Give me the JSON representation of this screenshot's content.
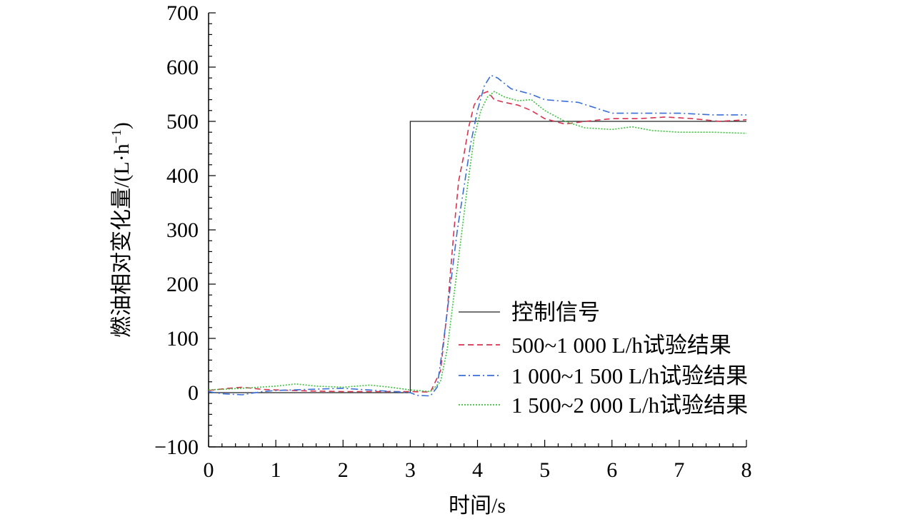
{
  "chart_data": {
    "type": "line",
    "xlabel": "时间/s",
    "ylabel_main": "燃油相对变化量/(L·h",
    "ylabel_sup": "−1",
    "ylabel_close": ")",
    "xlim": [
      0,
      8
    ],
    "ylim": [
      -100,
      700
    ],
    "x_ticks": [
      "0",
      "1",
      "2",
      "3",
      "4",
      "5",
      "6",
      "7",
      "8"
    ],
    "y_ticks": [
      "−100",
      "0",
      "100",
      "200",
      "300",
      "400",
      "500",
      "600",
      "700"
    ],
    "grid": false,
    "legend_position": "bottom-right",
    "series": [
      {
        "name": "控制信号",
        "color": "#222222",
        "style": "solid",
        "points": [
          [
            0,
            0
          ],
          [
            3.0,
            0
          ],
          [
            3.0,
            500
          ],
          [
            8.0,
            500
          ]
        ]
      },
      {
        "name": "500~1 000 L/h试验结果",
        "color": "#d6334f",
        "style": "dashed",
        "points": [
          [
            0,
            4
          ],
          [
            0.3,
            8
          ],
          [
            0.5,
            10
          ],
          [
            0.8,
            6
          ],
          [
            1.0,
            5
          ],
          [
            1.5,
            3
          ],
          [
            2.0,
            2
          ],
          [
            2.5,
            2
          ],
          [
            3.0,
            2
          ],
          [
            3.3,
            1
          ],
          [
            3.45,
            40
          ],
          [
            3.55,
            150
          ],
          [
            3.65,
            300
          ],
          [
            3.72,
            390
          ],
          [
            3.8,
            440
          ],
          [
            3.87,
            490
          ],
          [
            3.95,
            530
          ],
          [
            4.05,
            550
          ],
          [
            4.15,
            555
          ],
          [
            4.25,
            540
          ],
          [
            4.4,
            535
          ],
          [
            4.6,
            530
          ],
          [
            4.8,
            520
          ],
          [
            5.0,
            505
          ],
          [
            5.3,
            495
          ],
          [
            5.6,
            500
          ],
          [
            6.0,
            505
          ],
          [
            6.4,
            505
          ],
          [
            6.8,
            508
          ],
          [
            7.2,
            505
          ],
          [
            7.6,
            500
          ],
          [
            8.0,
            503
          ]
        ]
      },
      {
        "name": "1 000~1 500 L/h试验结果",
        "color": "#3a6fd8",
        "style": "dashdot",
        "points": [
          [
            0,
            2
          ],
          [
            0.2,
            -2
          ],
          [
            0.5,
            -4
          ],
          [
            0.8,
            2
          ],
          [
            1.0,
            4
          ],
          [
            1.5,
            6
          ],
          [
            2.0,
            8
          ],
          [
            2.5,
            4
          ],
          [
            3.0,
            0
          ],
          [
            3.1,
            -5
          ],
          [
            3.3,
            -6
          ],
          [
            3.4,
            10
          ],
          [
            3.5,
            100
          ],
          [
            3.6,
            200
          ],
          [
            3.7,
            300
          ],
          [
            3.8,
            380
          ],
          [
            3.9,
            460
          ],
          [
            4.0,
            520
          ],
          [
            4.1,
            565
          ],
          [
            4.2,
            585
          ],
          [
            4.3,
            580
          ],
          [
            4.5,
            560
          ],
          [
            4.8,
            550
          ],
          [
            5.0,
            540
          ],
          [
            5.5,
            535
          ],
          [
            6.0,
            515
          ],
          [
            6.5,
            515
          ],
          [
            7.0,
            515
          ],
          [
            7.5,
            512
          ],
          [
            8.0,
            512
          ]
        ]
      },
      {
        "name": "1 500~2 000 L/h试验结果",
        "color": "#3cc23c",
        "style": "dotted",
        "points": [
          [
            0,
            5
          ],
          [
            0.5,
            8
          ],
          [
            1.0,
            12
          ],
          [
            1.3,
            16
          ],
          [
            1.6,
            12
          ],
          [
            2.0,
            10
          ],
          [
            2.4,
            14
          ],
          [
            2.7,
            10
          ],
          [
            3.0,
            5
          ],
          [
            3.3,
            2
          ],
          [
            3.45,
            20
          ],
          [
            3.55,
            80
          ],
          [
            3.65,
            180
          ],
          [
            3.75,
            280
          ],
          [
            3.85,
            380
          ],
          [
            3.95,
            470
          ],
          [
            4.05,
            520
          ],
          [
            4.15,
            545
          ],
          [
            4.25,
            555
          ],
          [
            4.4,
            545
          ],
          [
            4.6,
            538
          ],
          [
            4.8,
            540
          ],
          [
            5.0,
            520
          ],
          [
            5.3,
            500
          ],
          [
            5.6,
            488
          ],
          [
            6.0,
            485
          ],
          [
            6.3,
            490
          ],
          [
            6.6,
            483
          ],
          [
            7.0,
            480
          ],
          [
            7.5,
            480
          ],
          [
            8.0,
            478
          ]
        ]
      }
    ]
  }
}
